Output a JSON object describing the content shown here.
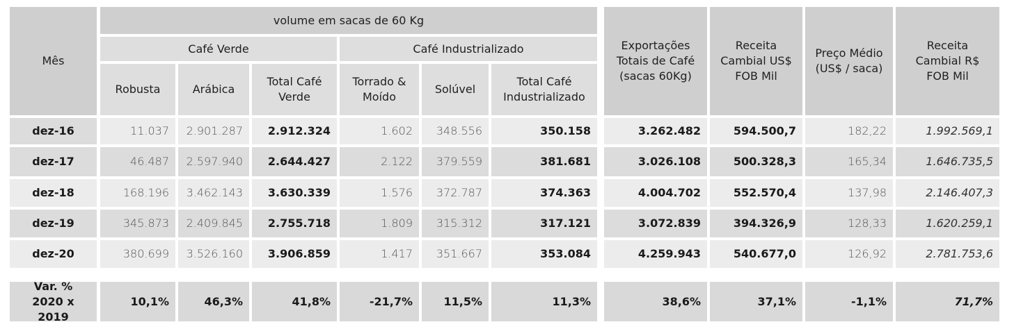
{
  "header": {
    "mes": "Mês",
    "volume": "volume em sacas de 60 Kg",
    "cafe_verde": "Café Verde",
    "cafe_industrializado": "Café Industrializado",
    "robusta": "Robusta",
    "arabica": "Arábica",
    "total_cafe_verde": "Total Café Verde",
    "torrado_moido": "Torrado & Moído",
    "soluvel": "Solúvel",
    "total_cafe_industrializado": "Total Café Industrializado",
    "exportacoes": "Exportações Totais de Café (sacas 60Kg)",
    "receita_usd": "Receita Cambial US$ FOB Mil",
    "preco_medio": "Preço Médio (US$ / saca)",
    "receita_brl": "Receita Cambial R$ FOB Mil"
  },
  "rows": [
    {
      "mes": "dez-16",
      "robusta": "11.037",
      "arabica": "2.901.287",
      "total_verde": "2.912.324",
      "torrado": "1.602",
      "soluvel": "348.556",
      "total_ind": "350.158",
      "exportacoes": "3.262.482",
      "receita_usd": "594.500,7",
      "preco": "182,22",
      "receita_brl": "1.992.569,1"
    },
    {
      "mes": "dez-17",
      "robusta": "46.487",
      "arabica": "2.597.940",
      "total_verde": "2.644.427",
      "torrado": "2.122",
      "soluvel": "379.559",
      "total_ind": "381.681",
      "exportacoes": "3.026.108",
      "receita_usd": "500.328,3",
      "preco": "165,34",
      "receita_brl": "1.646.735,5"
    },
    {
      "mes": "dez-18",
      "robusta": "168.196",
      "arabica": "3.462.143",
      "total_verde": "3.630.339",
      "torrado": "1.576",
      "soluvel": "372.787",
      "total_ind": "374.363",
      "exportacoes": "4.004.702",
      "receita_usd": "552.570,4",
      "preco": "137,98",
      "receita_brl": "2.146.407,3"
    },
    {
      "mes": "dez-19",
      "robusta": "345.873",
      "arabica": "2.409.845",
      "total_verde": "2.755.718",
      "torrado": "1.809",
      "soluvel": "315.312",
      "total_ind": "317.121",
      "exportacoes": "3.072.839",
      "receita_usd": "394.326,9",
      "preco": "128,33",
      "receita_brl": "1.620.259,1"
    },
    {
      "mes": "dez-20",
      "robusta": "380.699",
      "arabica": "3.526.160",
      "total_verde": "3.906.859",
      "torrado": "1.417",
      "soluvel": "351.667",
      "total_ind": "353.084",
      "exportacoes": "4.259.943",
      "receita_usd": "540.677,0",
      "preco": "126,92",
      "receita_brl": "2.781.753,6"
    }
  ],
  "variation": {
    "label": "Var. % 2020 x 2019",
    "robusta": "10,1%",
    "arabica": "46,3%",
    "total_verde": "41,8%",
    "torrado": "-21,7%",
    "soluvel": "11,5%",
    "total_ind": "11,3%",
    "exportacoes": "38,6%",
    "receita_usd": "37,1%",
    "preco": "-1,1%",
    "receita_brl": "71,7%"
  }
}
